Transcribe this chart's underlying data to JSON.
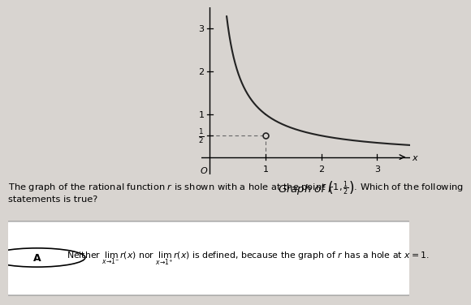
{
  "title": "Graph of $r$",
  "hole_x": 1.0,
  "hole_y": 0.5,
  "xlim": [
    -0.15,
    3.6
  ],
  "ylim": [
    -0.4,
    3.5
  ],
  "xticks": [
    1,
    2,
    3
  ],
  "ytick_vals": [
    0.5,
    1,
    2,
    3
  ],
  "ytick_lbls": [
    "$\\frac{1}{2}$",
    "1",
    "2",
    "3"
  ],
  "background_color": "#d8d4d0",
  "curve_color": "#222222",
  "dashed_color": "#666666",
  "question_line1": "The graph of the rational function $r$ is shown with a hole at the point $\\left(1, \\frac{1}{2}\\right)$. Which of the following",
  "question_line2": "statements is true?",
  "answer_text": "Neither $\\lim_{x\\to 1^-}r(x)$ nor $\\lim_{x\\to 1^+}r(x)$ is defined, because the graph of $r$ has a hole at $x = 1$.",
  "answer_label": "A"
}
